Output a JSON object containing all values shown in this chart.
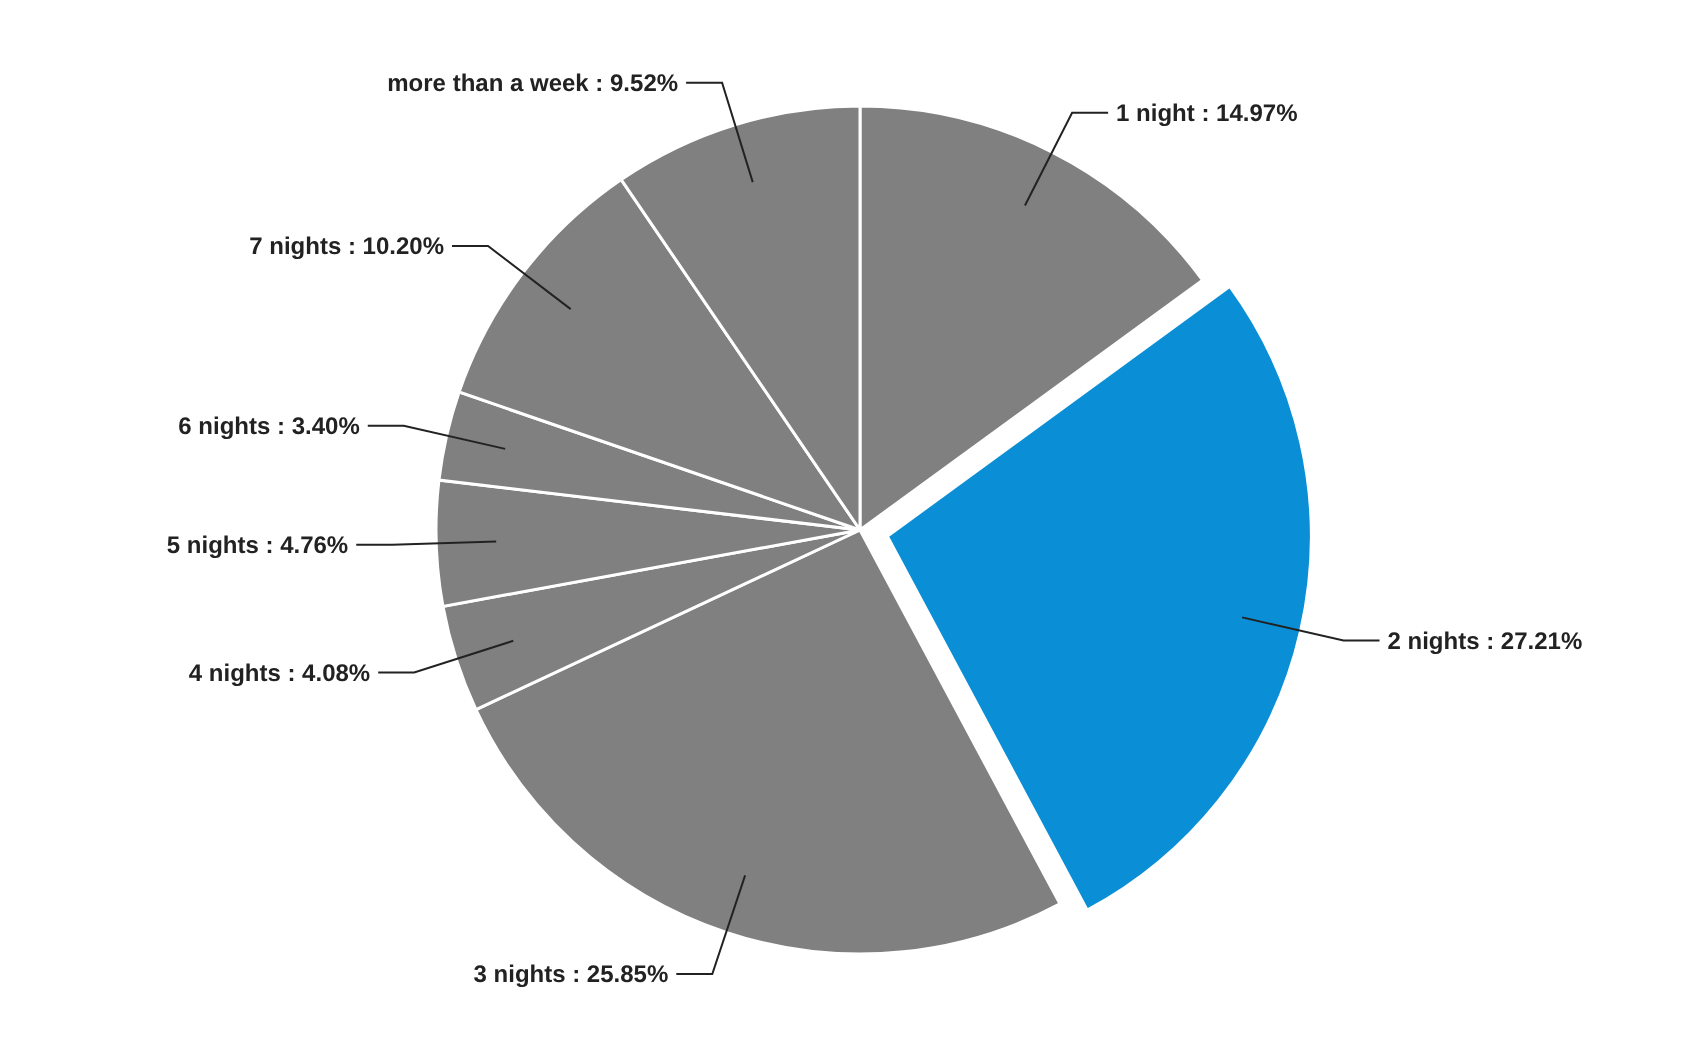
{
  "chart_data": {
    "type": "pie",
    "categories": [
      "1 night",
      "2 nights",
      "3 nights",
      "4 nights",
      "5 nights",
      "6 nights",
      "7 nights",
      "more than a week"
    ],
    "values": [
      14.97,
      27.21,
      25.85,
      4.08,
      4.76,
      3.4,
      10.2,
      9.52
    ],
    "value_labels": [
      "14.97%",
      "27.21%",
      "25.85%",
      "4.08%",
      "4.76%",
      "3.40%",
      "10.20%",
      "9.52%"
    ],
    "colors": [
      "#808080",
      "#0a8fd6",
      "#808080",
      "#808080",
      "#808080",
      "#808080",
      "#808080",
      "#808080"
    ]
  }
}
